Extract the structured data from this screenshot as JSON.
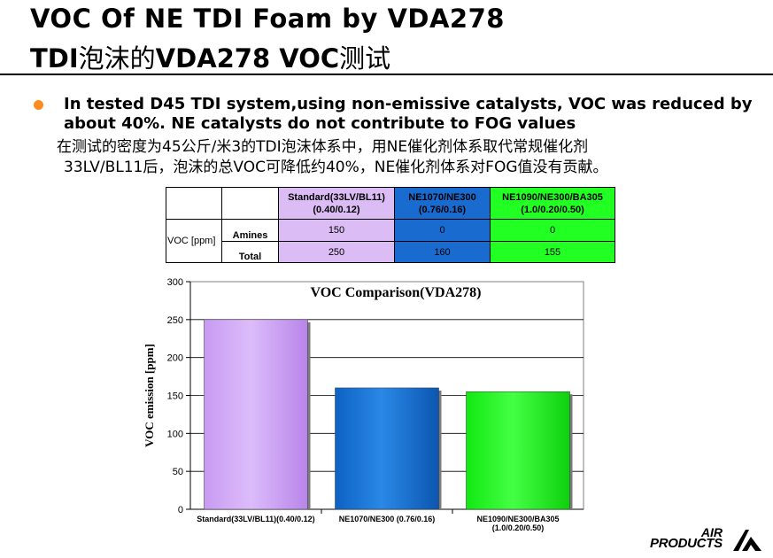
{
  "slide": {
    "title_line1": "VOC Of NE TDI Foam by VDA278",
    "title_line2_a": "TDI",
    "title_line2_b": "泡沫的",
    "title_line2_c": "VDA278 VOC",
    "title_line2_d": "测试"
  },
  "bullet": {
    "en": "In tested D45 TDI system,using non-emissive catalysts, VOC was reduced by about 40%.  NE catalysts do not contribute to FOG values",
    "cn_line1": "在测试的密度为45公斤/米3的TDI泡沫体系中，用NE催化剂体系取代常规催化剂",
    "cn_line2": "33LV/BL11后，泡沫的总VOC可降低约40%，NE催化剂体系对FOG值没有贡献。"
  },
  "table": {
    "row_label": "VOC [ppm]",
    "columns": [
      {
        "name": "Standard(33LV/BL11)",
        "sub": "(0.40/0.12)"
      },
      {
        "name": "NE1070/NE300",
        "sub": "(0.76/0.16)"
      },
      {
        "name": "NE1090/NE300/BA305",
        "sub": "(1.0/0.20/0.50)"
      }
    ],
    "rows": [
      {
        "label": "Amines",
        "values": [
          "150",
          "0",
          "0"
        ]
      },
      {
        "label": "Total",
        "values": [
          "250",
          "160",
          "155"
        ]
      }
    ]
  },
  "colors": {
    "standard": "#d2a8f8",
    "ne1070": "#1878d8",
    "ne1090": "#1efe1e",
    "plot_bg": "#ffffff",
    "bullet": "#ff8a1e"
  },
  "chart_data": {
    "type": "bar",
    "title": "VOC  Comparison(VDA278)",
    "ylabel": "VOC emission [ppm]",
    "xlabel": "",
    "ylim": [
      0,
      300
    ],
    "yticks": [
      0,
      50,
      100,
      150,
      200,
      250,
      300
    ],
    "categories": [
      {
        "line1": "Standard(33LV/BL11)(0.40/0.12)",
        "line2": ""
      },
      {
        "line1": "NE1070/NE300   (0.76/0.16)",
        "line2": ""
      },
      {
        "line1": "NE1090/NE300/BA305",
        "line2": "(1.0/0.20/0.50)"
      }
    ],
    "values": [
      250,
      160,
      155
    ],
    "grid": true,
    "legend": "none"
  },
  "logo": {
    "line1": "AIR",
    "line2": "PRODUCTS"
  }
}
